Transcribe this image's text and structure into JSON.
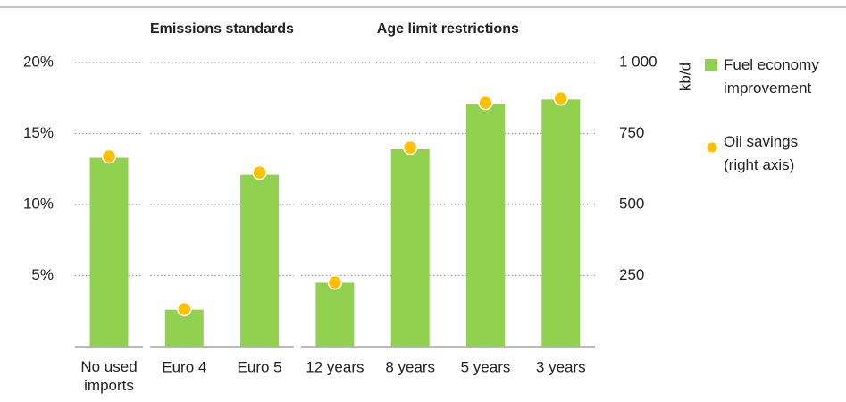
{
  "chart_data": {
    "type": "bar",
    "categories": [
      "No used imports",
      "Euro 4",
      "Euro 5",
      "12 years",
      "8 years",
      "5 years",
      "3 years"
    ],
    "groups": [
      {
        "label": "Emissions standards",
        "first": 1,
        "last": 2
      },
      {
        "label": "Age limit restrictions",
        "first": 3,
        "last": 6
      }
    ],
    "series": [
      {
        "name": "Fuel economy improvement",
        "color": "#92d050",
        "values": [
          13.3,
          2.6,
          12.1,
          4.5,
          13.9,
          17.1,
          17.4
        ]
      },
      {
        "name": "Oil savings (right axis)",
        "color": "#ffc000",
        "axis": "y2",
        "values": [
          670,
          132,
          613,
          226,
          701,
          858,
          874
        ]
      }
    ],
    "ylim": [
      0,
      20
    ],
    "yticks": [
      {
        "value": 5,
        "label": "5%"
      },
      {
        "value": 10,
        "label": "10%"
      },
      {
        "value": 15,
        "label": "15%"
      },
      {
        "value": 20,
        "label": "20%"
      }
    ],
    "y2lim": [
      0,
      1000
    ],
    "y2ticks": [
      250,
      500,
      750,
      {
        "value": 1000,
        "label": "1 000"
      }
    ],
    "y2label": "kb/d",
    "grid": true
  }
}
